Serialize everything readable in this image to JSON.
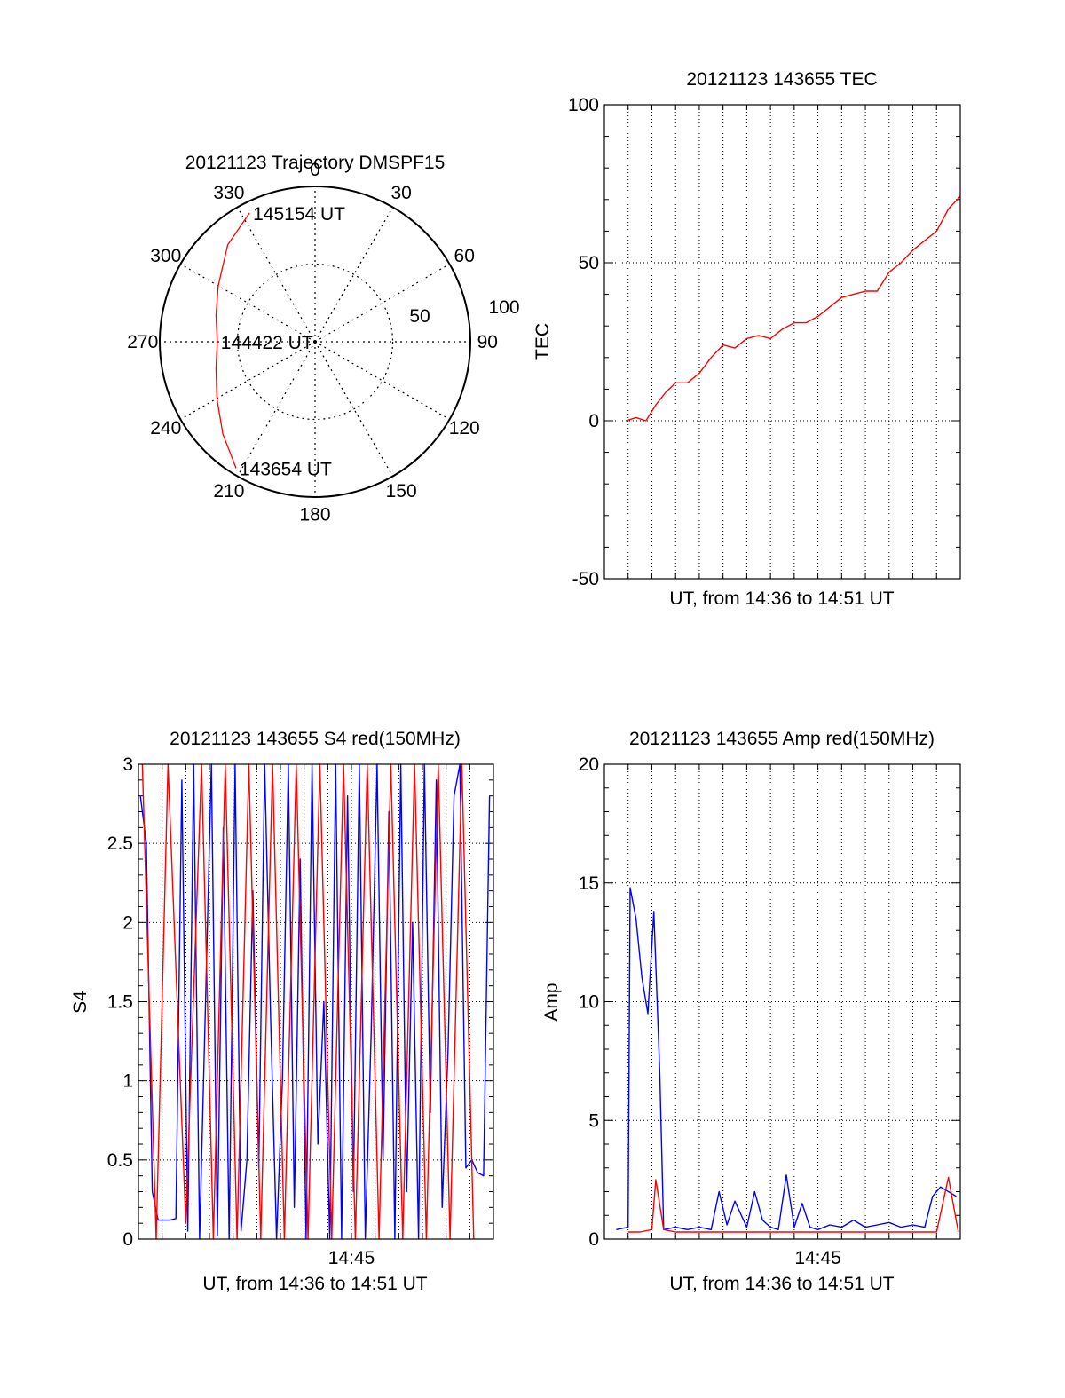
{
  "colors": {
    "primary": "#ff0000",
    "secondary": "#0000ff",
    "frame": "#000000",
    "grid": "#000000"
  },
  "chart_data": [
    {
      "id": "trajectory",
      "type": "polar",
      "title": "20121123 Trajectory DMSPF15",
      "angle_labels": [
        "0",
        "30",
        "60",
        "90",
        "120",
        "150",
        "180",
        "210",
        "240",
        "270",
        "300",
        "330"
      ],
      "radius_labels": [
        "50",
        "100"
      ],
      "rlim": [
        0,
        100
      ],
      "grid": true,
      "track": [
        {
          "az": 333,
          "r": 93
        },
        {
          "az": 318,
          "r": 84
        },
        {
          "az": 300,
          "r": 72
        },
        {
          "az": 285,
          "r": 66
        },
        {
          "az": 270,
          "r": 63
        },
        {
          "az": 255,
          "r": 66
        },
        {
          "az": 240,
          "r": 73
        },
        {
          "az": 225,
          "r": 84
        },
        {
          "az": 212,
          "r": 96
        }
      ],
      "annotations": [
        {
          "text": "145154 UT",
          "az": 333,
          "r": 93
        },
        {
          "text": "144422 UT",
          "az": 270,
          "r": 63
        },
        {
          "text": "143654 UT",
          "az": 212,
          "r": 96
        }
      ]
    },
    {
      "id": "tec",
      "type": "line",
      "title": "20121123 143655 TEC",
      "xlabel": "UT, from 14:36 to 14:51 UT",
      "ylabel": "TEC",
      "xlim": [
        "14:36:00",
        "14:51:00"
      ],
      "ylim": [
        -50,
        100
      ],
      "yticks": [
        "-50",
        "0",
        "50",
        "100"
      ],
      "xticks": [],
      "grid": true,
      "series": [
        {
          "color": "#ff0000",
          "x": [
            "14:36:55",
            "14:37:20",
            "14:37:45",
            "14:38:10",
            "14:38:35",
            "14:39:00",
            "14:39:30",
            "14:40:00",
            "14:40:30",
            "14:41:00",
            "14:41:30",
            "14:42:00",
            "14:42:30",
            "14:43:00",
            "14:43:30",
            "14:44:00",
            "14:44:30",
            "14:45:00",
            "14:45:30",
            "14:46:00",
            "14:46:30",
            "14:47:00",
            "14:47:30",
            "14:48:00",
            "14:48:30",
            "14:49:00",
            "14:49:30",
            "14:50:00",
            "14:50:30",
            "14:51:00"
          ],
          "y": [
            0,
            1,
            0,
            5,
            9,
            12,
            12,
            15,
            20,
            24,
            23,
            26,
            27,
            26,
            29,
            31,
            31,
            33,
            36,
            39,
            40,
            41,
            41,
            47,
            50,
            54,
            57,
            60,
            67,
            71
          ]
        }
      ]
    },
    {
      "id": "s4",
      "type": "line",
      "title": "20121123 143655 S4 red(150MHz)",
      "xlabel": "UT, from 14:36 to 14:51 UT",
      "ylabel": "S4",
      "xlim": [
        "14:36:00",
        "14:51:00"
      ],
      "ylim": [
        0,
        3
      ],
      "yticks": [
        "0",
        "0.5",
        "1",
        "1.5",
        "2",
        "2.5",
        "3"
      ],
      "xticks": [
        "14:45"
      ],
      "grid": true,
      "series": [
        {
          "color": "#0000ff",
          "x": [
            "14:36:05",
            "14:36:20",
            "14:36:35",
            "14:36:50",
            "14:37:05",
            "14:37:20",
            "14:37:35",
            "14:37:50",
            "14:38:05",
            "14:38:20",
            "14:38:35",
            "14:38:50",
            "14:39:05",
            "14:39:20",
            "14:39:35",
            "14:39:50",
            "14:40:05",
            "14:40:20",
            "14:40:35",
            "14:40:50",
            "14:41:05",
            "14:41:20",
            "14:41:35",
            "14:41:50",
            "14:42:05",
            "14:42:20",
            "14:42:35",
            "14:42:50",
            "14:43:05",
            "14:43:20",
            "14:43:35",
            "14:43:50",
            "14:44:05",
            "14:44:20",
            "14:44:35",
            "14:44:50",
            "14:45:05",
            "14:45:20",
            "14:45:35",
            "14:45:50",
            "14:46:05",
            "14:46:20",
            "14:46:35",
            "14:46:50",
            "14:47:05",
            "14:47:20",
            "14:47:35",
            "14:47:50",
            "14:48:05",
            "14:48:20",
            "14:48:35",
            "14:48:50",
            "14:49:05",
            "14:49:20",
            "14:49:35",
            "14:49:50",
            "14:50:05",
            "14:50:20",
            "14:50:35",
            "14:50:50"
          ],
          "y": [
            2.8,
            2.5,
            0.3,
            0.12,
            0.12,
            0.12,
            0.13,
            2.9,
            0.05,
            3,
            0.0,
            1.5,
            3,
            0.02,
            2.6,
            0.0,
            3,
            0.05,
            0.5,
            2.2,
            0.45,
            3,
            1.4,
            0.0,
            1.0,
            3,
            0.2,
            2.4,
            0.0,
            3,
            0.6,
            1.5,
            0.0,
            3,
            0.0,
            2.8,
            0.3,
            3,
            0.0,
            1.3,
            3,
            0.5,
            2.7,
            0.0,
            3,
            0.3,
            2.0,
            0.0,
            3,
            0.8,
            2.9,
            0.2,
            1.2,
            2.8,
            3,
            0.45,
            0.5,
            0.42,
            0.4,
            2.8
          ]
        },
        {
          "color": "#ff0000",
          "x": [
            "14:36:10",
            "14:36:45",
            "14:37:15",
            "14:38:00",
            "14:38:40",
            "14:39:10",
            "14:39:40",
            "14:40:10",
            "14:40:40",
            "14:41:10",
            "14:41:40",
            "14:42:10",
            "14:42:40",
            "14:43:10",
            "14:43:40",
            "14:44:10",
            "14:44:40",
            "14:45:10",
            "14:45:40",
            "14:46:10",
            "14:46:40",
            "14:47:10",
            "14:47:40",
            "14:48:10",
            "14:48:40",
            "14:49:10",
            "14:49:40",
            "14:50:10"
          ],
          "y": [
            3,
            0.0,
            3,
            0.1,
            3,
            0.0,
            3,
            0.0,
            3,
            0.0,
            3,
            0.0,
            3,
            0.0,
            3,
            0.0,
            3,
            0.0,
            3,
            0.0,
            3,
            0.0,
            3,
            0.0,
            3,
            0.0,
            3,
            0.0
          ]
        }
      ]
    },
    {
      "id": "amp",
      "type": "line",
      "title": "20121123 143655 Amp red(150MHz)",
      "xlabel": "UT, from 14:36 to 14:51 UT",
      "ylabel": "Amp",
      "xlim": [
        "14:36:00",
        "14:51:00"
      ],
      "ylim": [
        0,
        20
      ],
      "yticks": [
        "0",
        "5",
        "10",
        "15",
        "20"
      ],
      "xticks": [
        "14:45"
      ],
      "grid": true,
      "series": [
        {
          "color": "#0000ff",
          "x": [
            "14:36:30",
            "14:37:00",
            "14:37:05",
            "14:37:20",
            "14:37:35",
            "14:37:50",
            "14:38:05",
            "14:38:20",
            "14:38:30",
            "14:39:00",
            "14:39:30",
            "14:40:00",
            "14:40:30",
            "14:40:50",
            "14:41:10",
            "14:41:30",
            "14:42:00",
            "14:42:20",
            "14:42:40",
            "14:43:00",
            "14:43:20",
            "14:43:40",
            "14:44:00",
            "14:44:20",
            "14:44:40",
            "14:45:00",
            "14:45:30",
            "14:46:00",
            "14:46:30",
            "14:47:00",
            "14:47:30",
            "14:48:00",
            "14:48:30",
            "14:49:00",
            "14:49:30",
            "14:49:50",
            "14:50:10",
            "14:50:30",
            "14:50:50"
          ],
          "y": [
            0.4,
            0.5,
            14.8,
            13.5,
            11.0,
            9.5,
            13.8,
            7.0,
            0.4,
            0.5,
            0.4,
            0.5,
            0.4,
            2.0,
            0.6,
            1.6,
            0.5,
            2.0,
            0.8,
            0.5,
            0.4,
            2.7,
            0.5,
            1.5,
            0.5,
            0.4,
            0.6,
            0.5,
            0.8,
            0.5,
            0.6,
            0.7,
            0.5,
            0.6,
            0.5,
            1.8,
            2.2,
            2.0,
            1.8
          ]
        },
        {
          "color": "#ff0000",
          "x": [
            "14:37:00",
            "14:37:30",
            "14:38:00",
            "14:38:10",
            "14:38:30",
            "14:39:00",
            "14:40:00",
            "14:41:00",
            "14:42:00",
            "14:43:00",
            "14:44:00",
            "14:45:00",
            "14:46:00",
            "14:47:00",
            "14:48:00",
            "14:49:00",
            "14:50:00",
            "14:50:30",
            "14:50:55"
          ],
          "y": [
            0.3,
            0.3,
            0.4,
            2.5,
            0.4,
            0.3,
            0.3,
            0.3,
            0.3,
            0.3,
            0.3,
            0.3,
            0.3,
            0.3,
            0.3,
            0.3,
            0.3,
            2.6,
            0.3
          ]
        }
      ]
    }
  ]
}
